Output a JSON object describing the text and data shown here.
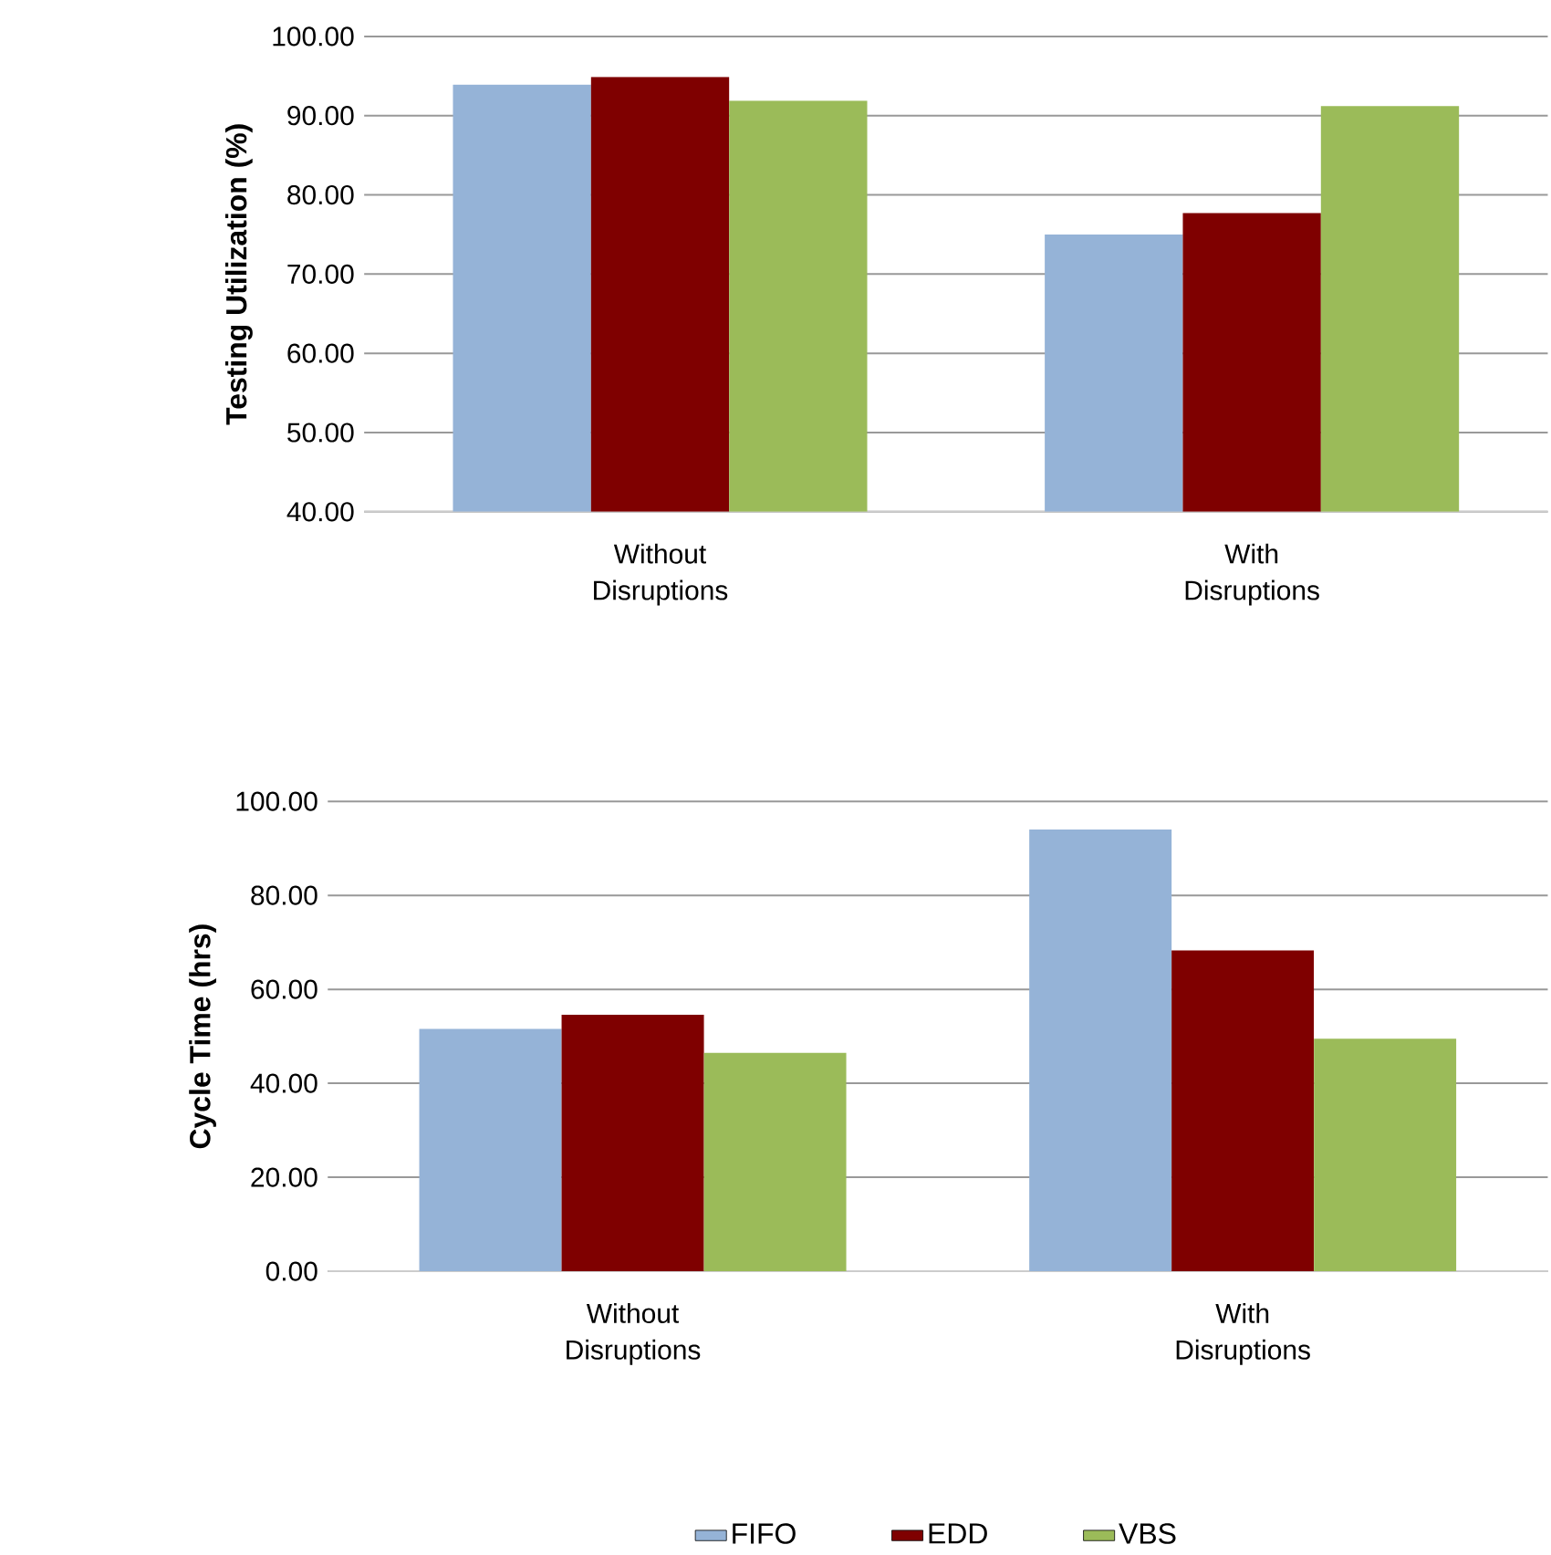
{
  "chart_data": [
    {
      "type": "bar",
      "ylabel": "Testing Utilization (%)",
      "categories": [
        "Without Disruptions",
        "With Disruptions"
      ],
      "series": [
        {
          "color": "#95b3d7",
          "values": [
            93.9,
            75.0
          ]
        },
        {
          "color": "#7f0000",
          "values": [
            94.9,
            77.7
          ]
        },
        {
          "color": "#9bbb59",
          "values": [
            91.9,
            91.2
          ]
        }
      ],
      "ylim": [
        40,
        100
      ],
      "yticks": [
        {
          "value": 40,
          "label": "40.00"
        },
        {
          "value": 50,
          "label": "50.00"
        },
        {
          "value": 60,
          "label": "60.00"
        },
        {
          "value": 70,
          "label": "70.00"
        },
        {
          "value": 80,
          "label": "80.00"
        },
        {
          "value": 90,
          "label": "90.00"
        },
        {
          "value": 100,
          "label": "100.00"
        }
      ],
      "grid": "y",
      "legend": false
    },
    {
      "type": "bar",
      "ylabel": "Cycle Time (hrs)",
      "categories": [
        "Without Disruptions",
        "With Disruptions"
      ],
      "series": [
        {
          "name": "FIFO",
          "color": "#95b3d7",
          "values": [
            51.6,
            94.0
          ]
        },
        {
          "name": "EDD",
          "color": "#7f0000",
          "values": [
            54.6,
            68.3
          ]
        },
        {
          "name": "VBS",
          "color": "#9bbb59",
          "values": [
            46.5,
            49.5
          ]
        }
      ],
      "ylim": [
        0,
        100
      ],
      "yticks": [
        {
          "value": 0,
          "label": "0.00"
        },
        {
          "value": 20,
          "label": "20.00"
        },
        {
          "value": 40,
          "label": "40.00"
        },
        {
          "value": 60,
          "label": "60.00"
        },
        {
          "value": 80,
          "label": "80.00"
        },
        {
          "value": 100,
          "label": "100.00"
        }
      ],
      "grid": "y",
      "legend": "bottom"
    }
  ]
}
